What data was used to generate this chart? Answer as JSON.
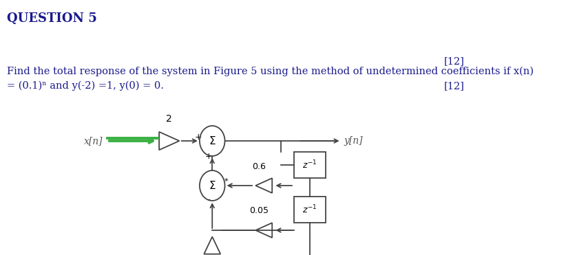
{
  "title": "QUESTION 5",
  "marks_top": "[12]",
  "marks_bottom": "[12]",
  "question_line1": "Find the total response of the system in Figure 5 using the method of undetermined coefficients if x(n)",
  "question_line2": "= (0.1)ⁿ and y(-2) =1, y(0) = 0.",
  "bg_color": "#ffffff",
  "text_color": "#1a1a8c",
  "gain_value": "2",
  "coeff1": "0.6",
  "coeff2": "0.05",
  "x_label": "x[n]",
  "y_label": "y[n]",
  "arrow_color": "#3cb043",
  "line_color": "#444444",
  "title_color": "#1a1a8c",
  "title_fontsize": 13,
  "text_fontsize": 10.5
}
